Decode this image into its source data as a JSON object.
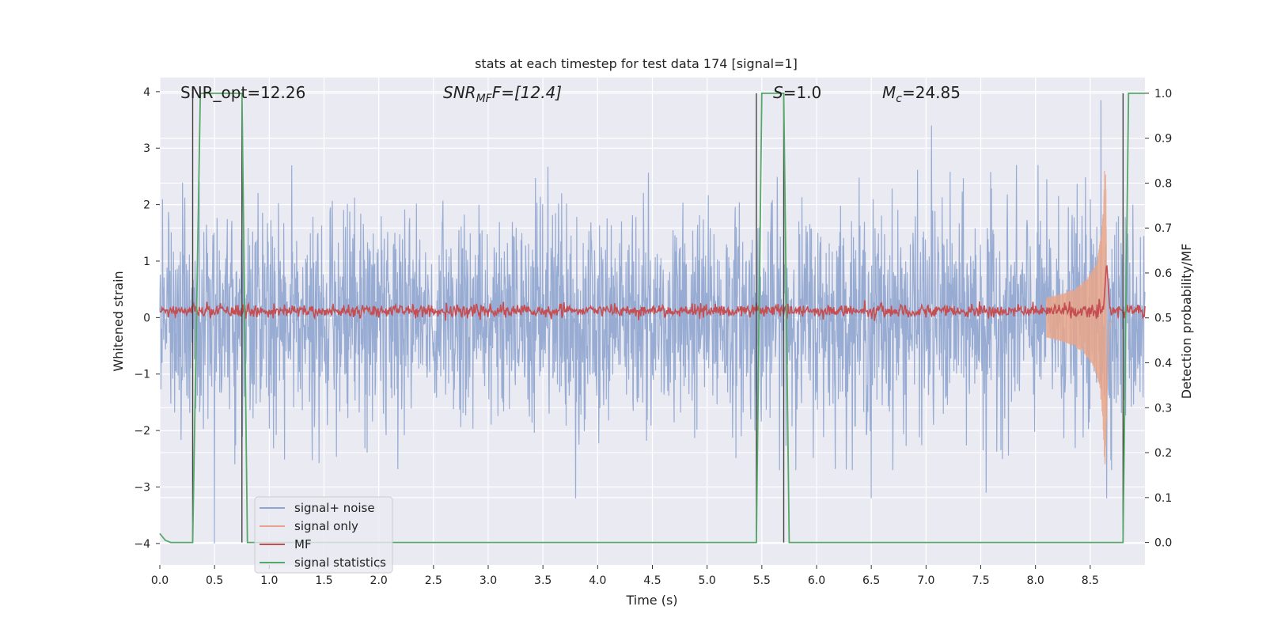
{
  "chart_data": {
    "type": "line",
    "title": "stats at each timestep for test data 174 [signal=1]",
    "xlabel": "Time (s)",
    "ylabel_left": "Whitened strain",
    "ylabel_right": "Detection probability/MF",
    "xlim": [
      0.0,
      9.0
    ],
    "ylim_left": [
      -4.38,
      4.25
    ],
    "ylim_right": [
      -0.05,
      1.035
    ],
    "x_ticks": [
      0.0,
      0.5,
      1.0,
      1.5,
      2.0,
      2.5,
      3.0,
      3.5,
      4.0,
      4.5,
      5.0,
      5.5,
      6.0,
      6.5,
      7.0,
      7.5,
      8.0,
      8.5
    ],
    "x_tick_labels": [
      "0.0",
      "0.5",
      "1.0",
      "1.5",
      "2.0",
      "2.5",
      "3.0",
      "3.5",
      "4.0",
      "4.5",
      "5.0",
      "5.5",
      "6.0",
      "6.5",
      "7.0",
      "7.5",
      "8.0",
      "8.5"
    ],
    "y_left_ticks": [
      4,
      3,
      2,
      1,
      0,
      -1,
      -2,
      -3,
      -4
    ],
    "y_left_tick_labels": [
      "4",
      "3",
      "2",
      "1",
      "0",
      "−1",
      "−2",
      "−3",
      "−4"
    ],
    "y_right_ticks": [
      1.0,
      0.9,
      0.8,
      0.7,
      0.6,
      0.5,
      0.4,
      0.3,
      0.2,
      0.1,
      0.0
    ],
    "y_right_tick_labels": [
      "1.0",
      "0.9",
      "0.8",
      "0.7",
      "0.6",
      "0.5",
      "0.4",
      "0.3",
      "0.2",
      "0.1",
      "0.0"
    ],
    "grid": true,
    "legend_placement": "lower-left",
    "annotations": {
      "snr_opt": "SNR_opt=12.26",
      "snr_mf_main": "SNR",
      "snr_mf_sub": "MF",
      "snr_mf_rest": "F=[12.4]",
      "s_main": "S",
      "s_rest": "=1.0",
      "mc_main": "M",
      "mc_sub": "c",
      "mc_rest": "=24.85"
    },
    "series": [
      {
        "name": "signal+ noise",
        "color": "#8fa5cf",
        "note_y_axis": "left",
        "amplitude_envelope": {
          "typical_abs_max": 2.3,
          "peaks": [
            [
              0.5,
              -4.0
            ],
            [
              0.75,
              3.3
            ],
            [
              3.8,
              -3.2
            ],
            [
              4.5,
              3.05
            ],
            [
              6.5,
              -3.2
            ],
            [
              7.05,
              3.4
            ],
            [
              7.55,
              -3.1
            ],
            [
              8.6,
              3.85
            ],
            [
              8.65,
              -3.2
            ]
          ]
        }
      },
      {
        "name": "signal only",
        "color": "#e8a48a",
        "note_y_axis": "left",
        "chirp": {
          "start_time": 8.1,
          "merger_time": 8.65,
          "peak_amplitude": 2.6
        }
      },
      {
        "name": "MF",
        "color": "#c44e52",
        "note_y_axis": "left",
        "baseline": 0.12,
        "noise_amplitude": 0.1,
        "peak": [
          8.65,
          1.0
        ]
      },
      {
        "name": "signal statistics",
        "color": "#55a868",
        "note_y_axis": "right",
        "x": [
          0.0,
          0.05,
          0.1,
          0.15,
          0.3,
          0.37,
          0.75,
          0.8,
          5.45,
          5.5,
          5.7,
          5.75,
          8.8,
          8.85,
          9.0
        ],
        "y": [
          0.02,
          0.005,
          0.0,
          0.0,
          0.0,
          1.0,
          1.0,
          0.0,
          0.0,
          1.0,
          1.0,
          0.0,
          0.0,
          1.0,
          1.0
        ]
      }
    ],
    "vertical_markers": {
      "color": "#444444",
      "x": [
        0.3,
        0.75,
        5.45,
        5.7,
        8.8
      ],
      "y_top": 1.0,
      "y_bottom": 0.0
    }
  }
}
